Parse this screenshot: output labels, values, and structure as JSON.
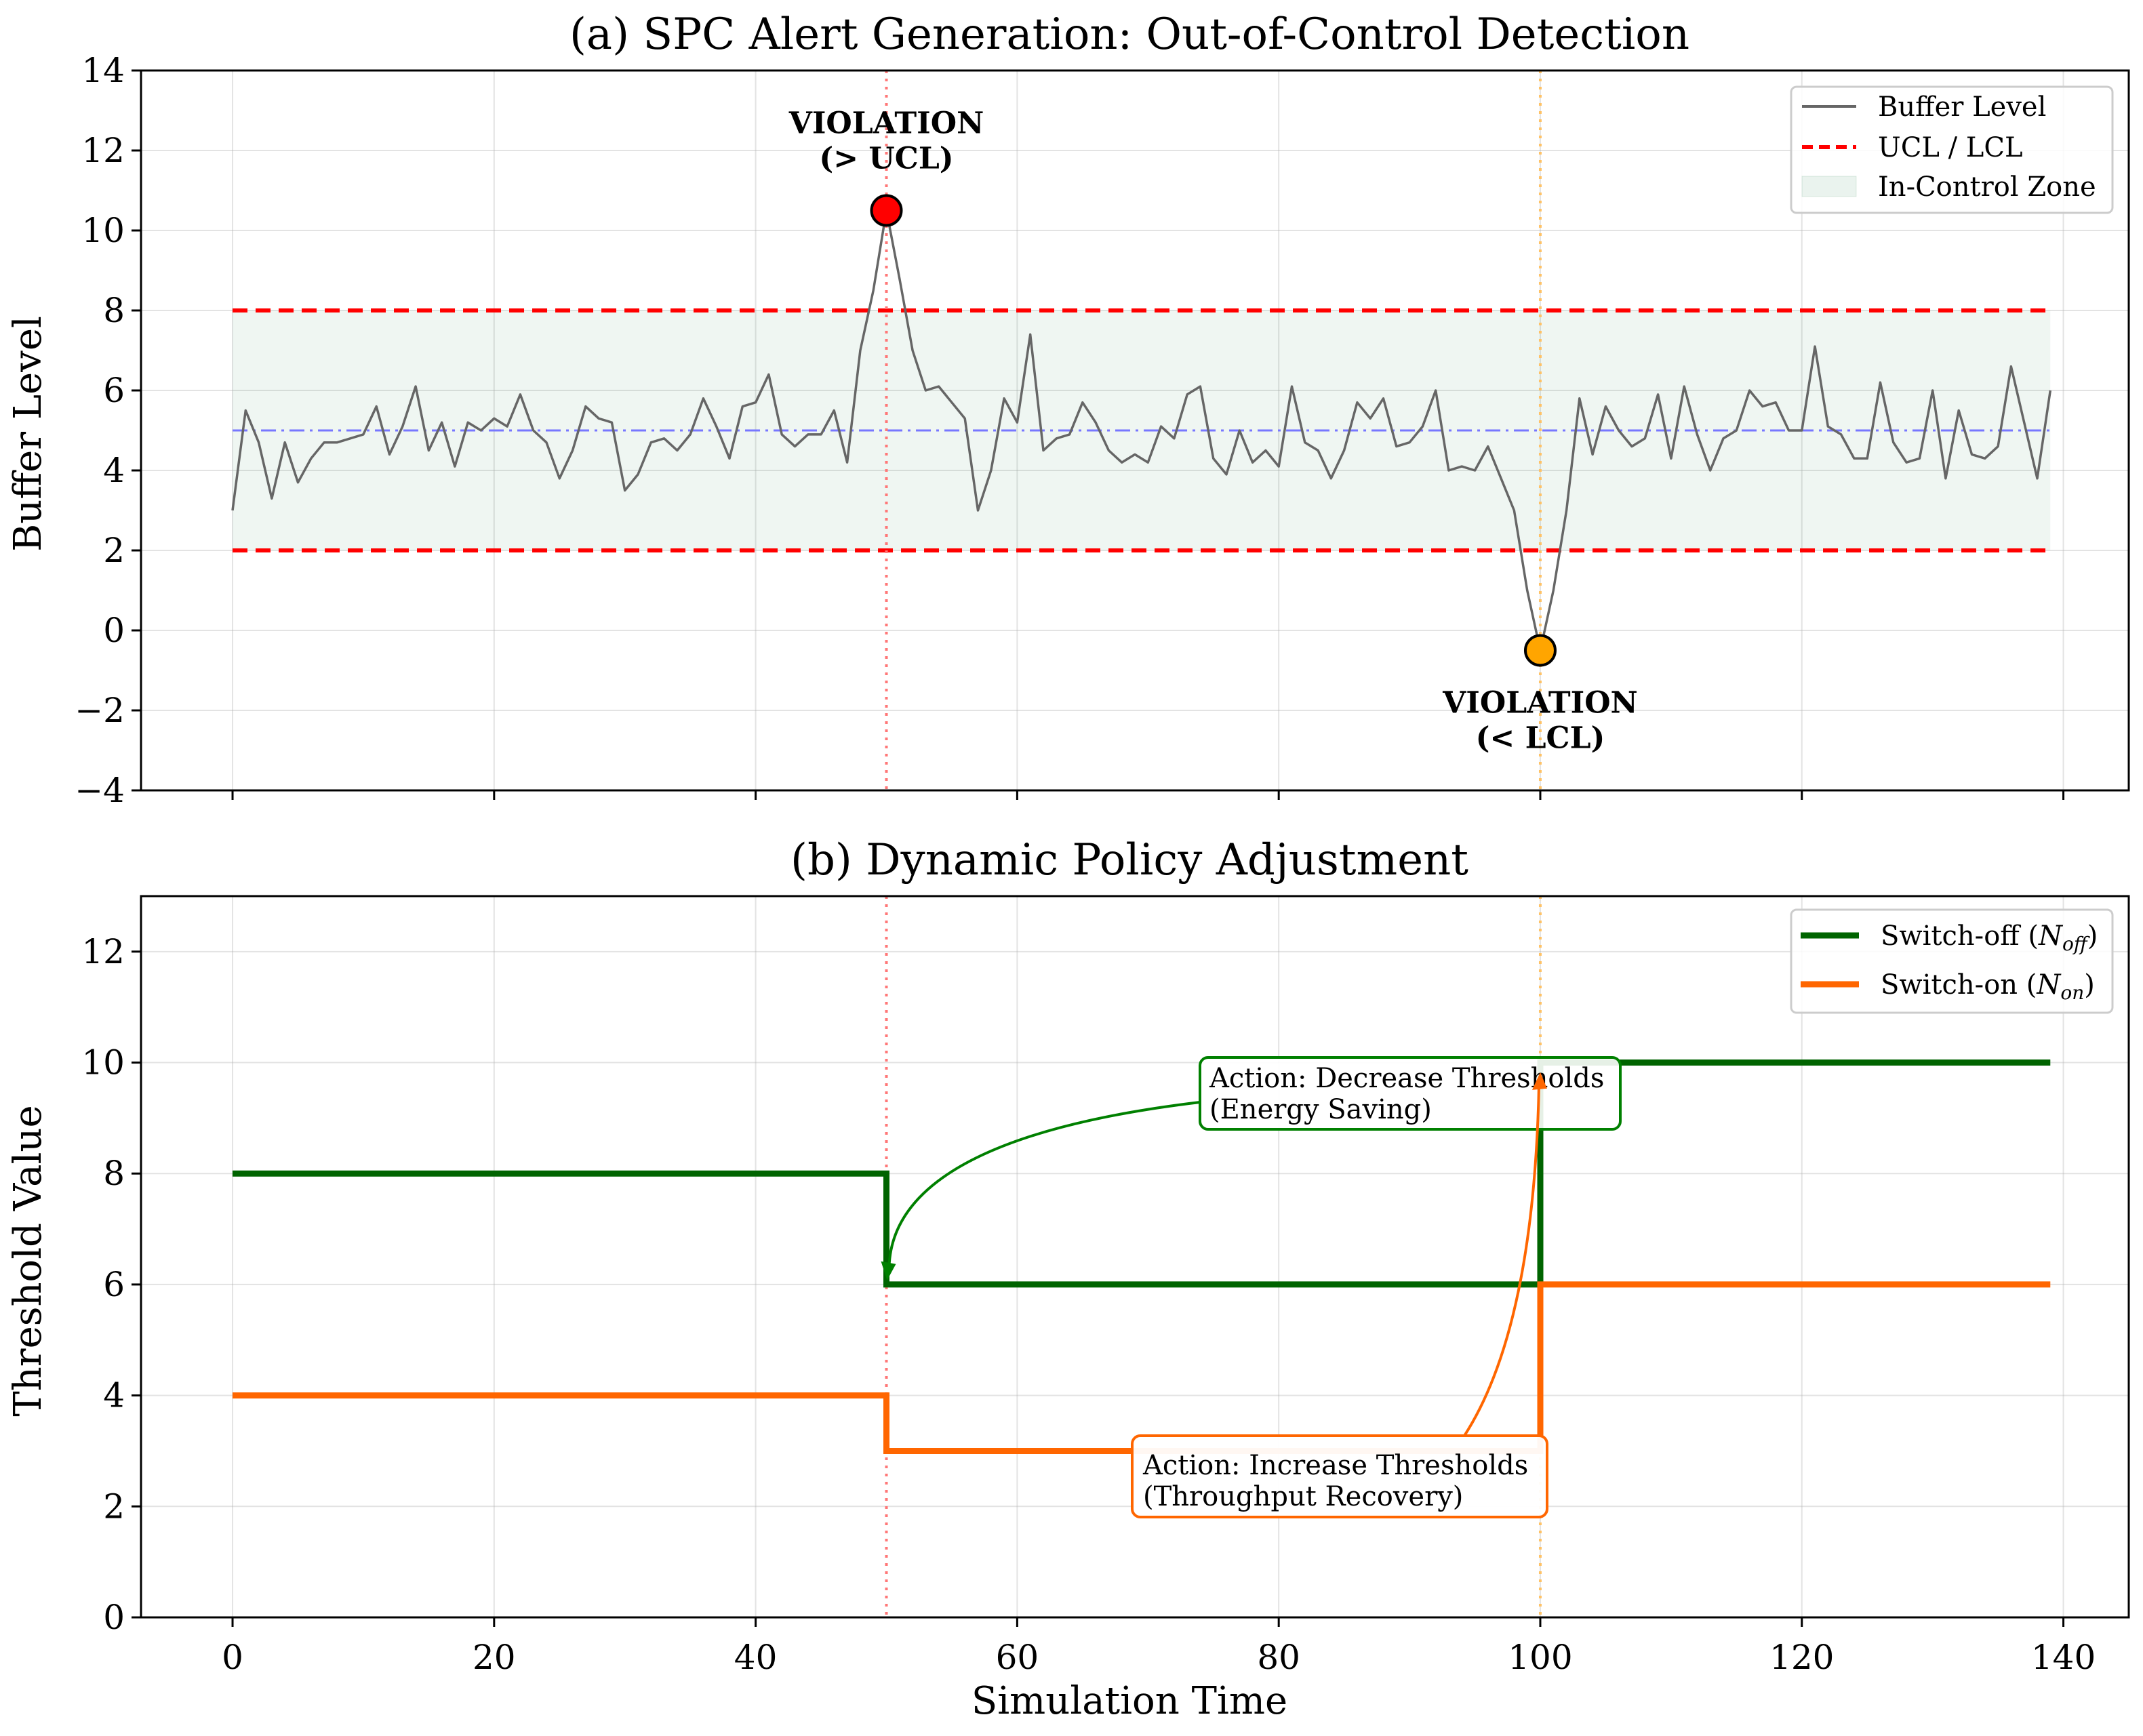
{
  "chart_data": [
    {
      "type": "line",
      "title": "(a) SPC Alert Generation: Out-of-Control Detection",
      "xlabel": "",
      "ylabel": "Buffer Level",
      "xlim": [
        -7,
        145
      ],
      "ylim": [
        -4,
        14
      ],
      "xticks": [
        0,
        20,
        40,
        60,
        80,
        100,
        120,
        140
      ],
      "yticks": [
        -4,
        -2,
        0,
        2,
        4,
        6,
        8,
        10,
        12,
        14
      ],
      "grid": true,
      "legend_position": "top-right",
      "center_line": 5.0,
      "ucl": 8.0,
      "lcl": 2.0,
      "series": [
        {
          "name": "Buffer Level",
          "color": "#666666",
          "x_start": 0,
          "values": [
            3.0,
            5.5,
            4.7,
            3.3,
            4.7,
            3.7,
            4.3,
            4.7,
            4.7,
            4.8,
            4.9,
            5.6,
            4.4,
            5.1,
            6.1,
            4.5,
            5.2,
            4.1,
            5.2,
            5.0,
            5.3,
            5.1,
            5.9,
            5.0,
            4.7,
            3.8,
            4.5,
            5.6,
            5.3,
            5.2,
            3.5,
            3.9,
            4.7,
            4.8,
            4.5,
            4.9,
            5.8,
            5.1,
            4.3,
            5.6,
            5.7,
            6.4,
            4.9,
            4.6,
            4.9,
            4.9,
            5.5,
            4.2,
            7.0,
            8.5,
            10.5,
            8.8,
            7.0,
            6.0,
            6.1,
            5.7,
            5.3,
            3.0,
            4.0,
            5.8,
            5.2,
            7.4,
            4.5,
            4.8,
            4.9,
            5.7,
            5.2,
            4.5,
            4.2,
            4.4,
            4.2,
            5.1,
            4.8,
            5.9,
            6.1,
            4.3,
            3.9,
            5.0,
            4.2,
            4.5,
            4.1,
            6.1,
            4.7,
            4.5,
            3.8,
            4.5,
            5.7,
            5.3,
            5.8,
            4.6,
            4.7,
            5.1,
            6.0,
            4.0,
            4.1,
            4.0,
            4.6,
            3.8,
            3.0,
            1.0,
            -0.5,
            1.0,
            3.0,
            5.8,
            4.4,
            5.6,
            5.0,
            4.6,
            4.8,
            5.9,
            4.3,
            6.1,
            4.9,
            4.0,
            4.8,
            5.0,
            6.0,
            5.6,
            5.7,
            5.0,
            5.0,
            7.1,
            5.1,
            4.9,
            4.3,
            4.3,
            6.2,
            4.7,
            4.2,
            4.3,
            6.0,
            3.8,
            5.5,
            4.4,
            4.3,
            4.6,
            6.6,
            5.2,
            3.8,
            6.0
          ]
        }
      ],
      "legend": [
        "Buffer Level",
        "UCL / LCL",
        "In-Control Zone"
      ],
      "violations": [
        {
          "x": 50,
          "y": 10.5,
          "label_line1": "VIOLATION",
          "label_line2": "(> UCL)",
          "color": "#ee0000",
          "marker_color": "#ff0000"
        },
        {
          "x": 100,
          "y": -0.5,
          "label_line1": "VIOLATION",
          "label_line2": "(< LCL)",
          "color": "#ff7700",
          "marker_color": "#ffa500"
        }
      ],
      "event_lines": [
        {
          "x": 50,
          "color": "#ff7777"
        },
        {
          "x": 100,
          "color": "#ffc266"
        }
      ]
    },
    {
      "type": "line",
      "title": "(b) Dynamic Policy Adjustment",
      "xlabel": "Simulation Time",
      "ylabel": "Threshold Value",
      "xlim": [
        -7,
        145
      ],
      "ylim": [
        0,
        13
      ],
      "xticks": [
        0,
        20,
        40,
        60,
        80,
        100,
        120,
        140
      ],
      "yticks": [
        0,
        2,
        4,
        6,
        8,
        10,
        12
      ],
      "grid": true,
      "legend_position": "top-right",
      "series": [
        {
          "name": "Switch-off (N_off)",
          "legend_prefix": "Switch-off (",
          "legend_symbol": "N",
          "legend_sub": "off",
          "legend_suffix": ")",
          "color": "#006400",
          "x": [
            0,
            50,
            50,
            100,
            100,
            139
          ],
          "y": [
            8,
            8,
            6,
            6,
            10,
            10
          ]
        },
        {
          "name": "Switch-on (N_on)",
          "legend_prefix": "Switch-on (",
          "legend_symbol": "N",
          "legend_sub": "on",
          "legend_suffix": ")",
          "color": "#ff6600",
          "x": [
            0,
            50,
            50,
            100,
            100,
            139
          ],
          "y": [
            4,
            4,
            3,
            3,
            6,
            6
          ]
        }
      ],
      "annotations": [
        {
          "line1": "Action: Decrease Thresholds",
          "line2": "(Energy Saving)",
          "color": "#008000",
          "target": [
            50,
            6.1
          ]
        },
        {
          "line1": "Action: Increase Thresholds",
          "line2": "(Throughput Recovery)",
          "color": "#ff6600",
          "target": [
            100,
            9.8
          ]
        }
      ],
      "event_lines": [
        {
          "x": 50,
          "color": "#ff7777"
        },
        {
          "x": 100,
          "color": "#ffc266"
        }
      ]
    }
  ]
}
